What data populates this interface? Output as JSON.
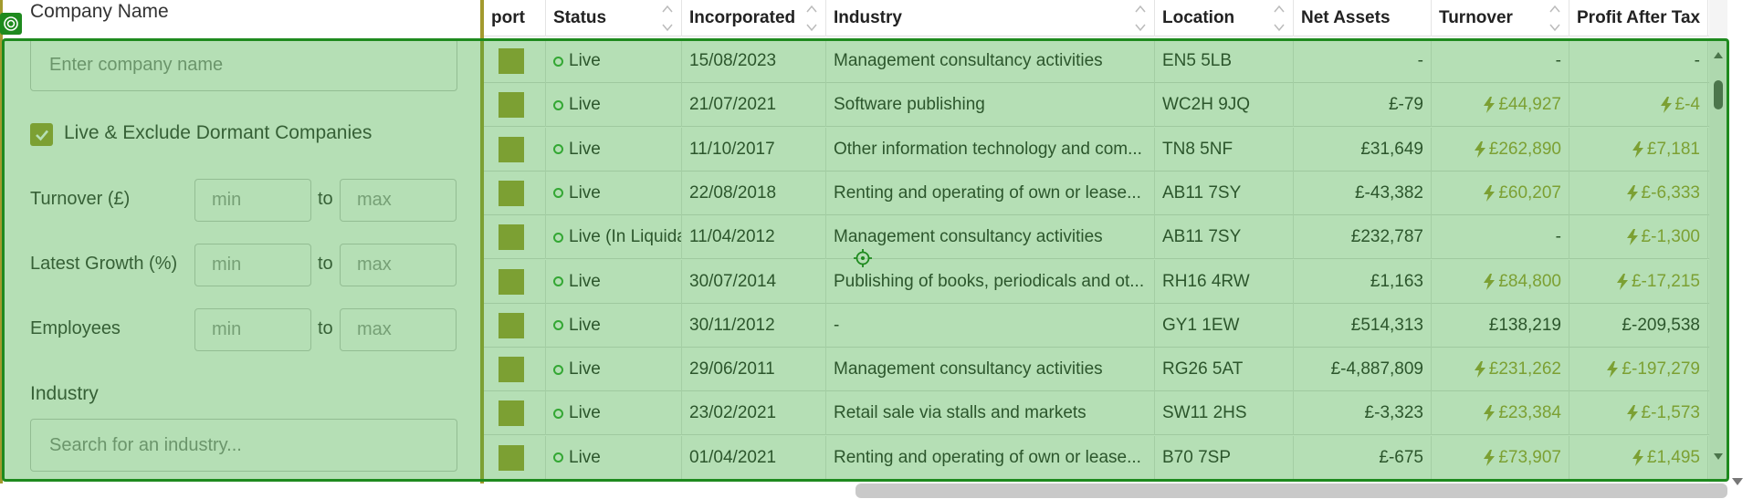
{
  "filters": {
    "company_name_label": "Company Name",
    "company_name_placeholder": "Enter company name",
    "live_checkbox_label": "Live & Exclude Dormant Companies",
    "live_checked": true,
    "turnover": {
      "label": "Turnover (£)",
      "min": "min",
      "to": "to",
      "max": "max"
    },
    "growth": {
      "label": "Latest Growth (%)",
      "min": "min",
      "to": "to",
      "max": "max"
    },
    "employees": {
      "label": "Employees",
      "min": "min",
      "to": "to",
      "max": "max"
    },
    "industry_label": "Industry",
    "industry_placeholder": "Search for an industry..."
  },
  "table": {
    "columns": [
      "port",
      "Status",
      "Incorporated",
      "Industry",
      "Location",
      "Net Assets",
      "Turnover",
      "Profit After Tax"
    ],
    "rows": [
      {
        "status": "Live",
        "incorporated": "15/08/2023",
        "industry": "Management consultancy activities",
        "location": "EN5 5LB",
        "net_assets": "-",
        "turnover": "-",
        "turnover_flag": false,
        "profit": "-",
        "profit_flag": false
      },
      {
        "status": "Live",
        "incorporated": "21/07/2021",
        "industry": "Software publishing",
        "location": "WC2H 9JQ",
        "net_assets": "£-79",
        "turnover": "£44,927",
        "turnover_flag": true,
        "profit": "£-4",
        "profit_flag": true
      },
      {
        "status": "Live",
        "incorporated": "11/10/2017",
        "industry": "Other information technology and com...",
        "location": "TN8 5NF",
        "net_assets": "£31,649",
        "turnover": "£262,890",
        "turnover_flag": true,
        "profit": "£7,181",
        "profit_flag": true
      },
      {
        "status": "Live",
        "incorporated": "22/08/2018",
        "industry": "Renting and operating of own or lease...",
        "location": "AB11 7SY",
        "net_assets": "£-43,382",
        "turnover": "£60,207",
        "turnover_flag": true,
        "profit": "£-6,333",
        "profit_flag": true
      },
      {
        "status": "Live (In Liquida",
        "incorporated": "11/04/2012",
        "industry": "Management consultancy activities",
        "location": "AB11 7SY",
        "net_assets": "£232,787",
        "turnover": "-",
        "turnover_flag": false,
        "profit": "£-1,300",
        "profit_flag": true
      },
      {
        "status": "Live",
        "incorporated": "30/07/2014",
        "industry": "Publishing of books, periodicals and ot...",
        "location": "RH16 4RW",
        "net_assets": "£1,163",
        "turnover": "£84,800",
        "turnover_flag": true,
        "profit": "£-17,215",
        "profit_flag": true
      },
      {
        "status": "Live",
        "incorporated": "30/11/2012",
        "industry": "-",
        "location": "GY1 1EW",
        "net_assets": "£514,313",
        "turnover": "£138,219",
        "turnover_flag": false,
        "profit": "£-209,538",
        "profit_flag": false
      },
      {
        "status": "Live",
        "incorporated": "29/06/2011",
        "industry": "Management consultancy activities",
        "location": "RG26 5AT",
        "net_assets": "£-4,887,809",
        "turnover": "£231,262",
        "turnover_flag": true,
        "profit": "£-197,279",
        "profit_flag": true
      },
      {
        "status": "Live",
        "incorporated": "23/02/2021",
        "industry": "Retail sale via stalls and markets",
        "location": "SW11 2HS",
        "net_assets": "£-3,323",
        "turnover": "£23,384",
        "turnover_flag": true,
        "profit": "£-1,573",
        "profit_flag": true
      },
      {
        "status": "Live",
        "incorporated": "01/04/2021",
        "industry": "Renting and operating of own or lease...",
        "location": "B70 7SP",
        "net_assets": "£-675",
        "turnover": "£73,907",
        "turnover_flag": true,
        "profit": "£1,495",
        "profit_flag": true
      }
    ]
  },
  "colors": {
    "accent": "#a39a2e",
    "live": "#2ea52e",
    "highlight": "#1e8a1e"
  },
  "icons": {
    "checkbox": "check-icon",
    "flag": "lightning-icon",
    "export": "export-square",
    "overlay": "target-icon",
    "cursor": "crosshair-icon"
  }
}
